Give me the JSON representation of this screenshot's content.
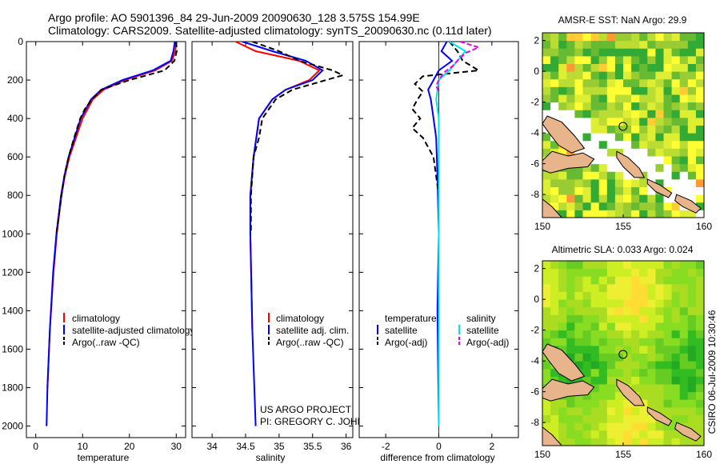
{
  "header": {
    "title_line1": "Argo profile: AO 5901396_84 29-Jun-2009 20090630_128 3.575S 154.99E",
    "title_line2": "Climatology: CARS2009. Satellite-adjusted climatology: synTS_20090630.nc (0.11d later)"
  },
  "credits": {
    "project": "US ARGO PROJECT",
    "pi": "PI: GREGORY C. JOHNSON",
    "timestamp": "CSIRO 06-Jul-2009 10:30:46"
  },
  "colors": {
    "climatology": "#ff0000",
    "satellite": "#0000ff",
    "argo": "#000000",
    "sal_satellite": "#00e5e5",
    "sal_argo": "#e600e6",
    "land": "#e8b48c"
  },
  "chart_data": [
    {
      "type": "line",
      "id": "temperature",
      "xlabel": "temperature",
      "ylabel": "",
      "xlim": [
        -2,
        32
      ],
      "ylim": [
        2060,
        0
      ],
      "xticks": [
        0,
        10,
        20,
        30
      ],
      "yticks": [
        0,
        200,
        400,
        600,
        800,
        1000,
        1200,
        1400,
        1600,
        1800,
        2000
      ],
      "legend": [
        "climatology",
        "satellite-adjusted climatology",
        "Argo(..raw -QC)"
      ],
      "series": [
        {
          "name": "climatology",
          "depth": [
            0,
            50,
            100,
            150,
            200,
            250,
            300,
            400,
            500,
            600,
            700,
            800,
            1000,
            1200,
            1500,
            1800
          ],
          "values": [
            30.0,
            29.8,
            29.1,
            25.5,
            19.0,
            14.5,
            12.2,
            10.0,
            8.6,
            7.2,
            6.2,
            5.5,
            4.5,
            3.8,
            3.0,
            2.5
          ]
        },
        {
          "name": "satellite-adjusted climatology",
          "depth": [
            0,
            50,
            100,
            150,
            200,
            250,
            300,
            400,
            500,
            600,
            700,
            800,
            1000,
            1200,
            1500,
            1800,
            2000
          ],
          "values": [
            29.7,
            29.4,
            28.8,
            25.0,
            18.5,
            14.0,
            11.8,
            9.6,
            8.3,
            7.0,
            6.1,
            5.4,
            4.4,
            3.7,
            3.0,
            2.5,
            2.3
          ]
        },
        {
          "name": "Argo(..raw -QC)",
          "depth": [
            0,
            50,
            100,
            150,
            200,
            250,
            300,
            350,
            400,
            500,
            600,
            700,
            800,
            1000
          ],
          "values": [
            30.0,
            30.1,
            29.6,
            27.5,
            20.0,
            14.0,
            12.0,
            10.5,
            9.5,
            8.2,
            7.0,
            6.1,
            5.5,
            4.4
          ]
        }
      ]
    },
    {
      "type": "line",
      "id": "salinity",
      "xlabel": "salinity",
      "ylabel": "",
      "xlim": [
        33.7,
        36.1
      ],
      "ylim": [
        2060,
        0
      ],
      "xticks": [
        34,
        34.5,
        35,
        35.5,
        36
      ],
      "xtick_labels": [
        "34",
        "34.5",
        "35",
        "35.5",
        "36"
      ],
      "legend": [
        "climatology",
        "satellite adj. clim.",
        "Argo(..raw -QC)"
      ],
      "series": [
        {
          "name": "climatology",
          "depth": [
            0,
            50,
            100,
            150,
            200,
            250,
            300,
            400,
            600,
            800,
            1000,
            1500
          ],
          "values": [
            34.35,
            34.65,
            35.3,
            35.6,
            35.45,
            35.1,
            34.9,
            34.7,
            34.62,
            34.57,
            34.57,
            34.6
          ]
        },
        {
          "name": "satellite adj. clim.",
          "depth": [
            0,
            50,
            100,
            150,
            200,
            250,
            300,
            400,
            600,
            800,
            1000,
            1500,
            2000
          ],
          "values": [
            34.45,
            34.9,
            35.4,
            35.65,
            35.5,
            35.1,
            34.9,
            34.7,
            34.62,
            34.57,
            34.57,
            34.6,
            34.65
          ]
        },
        {
          "name": "Argo(..raw -QC)",
          "depth": [
            0,
            50,
            100,
            150,
            175,
            200,
            250,
            300,
            400,
            500,
            600,
            800,
            1000
          ],
          "values": [
            34.6,
            35.0,
            35.3,
            35.8,
            35.95,
            35.7,
            35.2,
            34.95,
            34.75,
            34.7,
            34.62,
            34.58,
            34.58
          ]
        }
      ]
    },
    {
      "type": "line",
      "id": "difference",
      "xlabel": "difference from climatology",
      "ylabel": "",
      "xlim": [
        -3,
        3
      ],
      "ylim": [
        2060,
        0
      ],
      "xticks": [
        -2,
        0,
        2
      ],
      "legend_titles": [
        "temperature",
        "salinity"
      ],
      "legend": [
        "satellite",
        "Argo(-adj)",
        "satellite",
        "Argo(-adj)"
      ],
      "series": [
        {
          "name": "temperature satellite",
          "depth": [
            0,
            50,
            100,
            150,
            200,
            250,
            300,
            400,
            500,
            700,
            1000,
            1400,
            2000
          ],
          "values": [
            0.3,
            0.1,
            0.5,
            0.0,
            -0.2,
            -0.4,
            -0.3,
            -0.2,
            -0.1,
            -0.05,
            0.0,
            -0.05,
            0.0
          ]
        },
        {
          "name": "temperature Argo(-adj)",
          "depth": [
            0,
            50,
            100,
            150,
            180,
            220,
            260,
            300,
            350,
            400,
            450,
            500,
            600,
            700,
            800,
            1000
          ],
          "values": [
            0.4,
            0.7,
            0.9,
            1.5,
            -0.6,
            -0.9,
            -0.6,
            -0.8,
            -1.0,
            -0.7,
            -1.0,
            -0.6,
            -0.2,
            -0.1,
            0.0,
            0.0
          ]
        },
        {
          "name": "salinity satellite",
          "depth": [
            0,
            50,
            100,
            150,
            200,
            300,
            400,
            600,
            800,
            1200,
            2000
          ],
          "values": [
            0.4,
            1.0,
            0.7,
            0.4,
            0.0,
            -0.1,
            0.0,
            0.0,
            0.0,
            0.0,
            0.0
          ]
        },
        {
          "name": "salinity Argo(-adj)",
          "depth": [
            0,
            30,
            60,
            100,
            130,
            160,
            200,
            230,
            260
          ],
          "values": [
            0.8,
            1.5,
            1.0,
            0.7,
            0.5,
            0.2,
            0.0,
            -0.1,
            0.0
          ]
        }
      ]
    },
    {
      "type": "heatmap",
      "id": "amsre_sst",
      "title": "AMSR-E SST: NaN Argo: 29.9",
      "xlim": [
        150,
        160
      ],
      "ylim": [
        -9.5,
        2.5
      ],
      "xticks": [
        150,
        155,
        160
      ],
      "yticks": [
        2,
        0,
        -2,
        -4,
        -6,
        -8
      ],
      "argo_position": [
        154.99,
        -3.575
      ]
    },
    {
      "type": "heatmap",
      "id": "altimetric_sla",
      "title": "Altimetric SLA: 0.033 Argo: 0.024",
      "xlim": [
        150,
        160
      ],
      "ylim": [
        -9.5,
        2.5
      ],
      "xticks": [
        150,
        155,
        160
      ],
      "yticks": [
        2,
        0,
        -2,
        -4,
        -6,
        -8
      ],
      "argo_position": [
        154.99,
        -3.575
      ]
    }
  ]
}
